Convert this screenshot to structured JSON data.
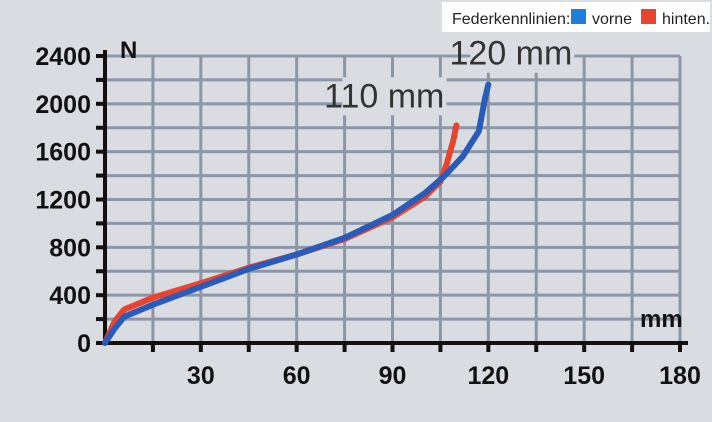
{
  "chart_data": {
    "type": "line",
    "title": "",
    "xlabel": "mm",
    "ylabel": "N",
    "xlim": [
      0,
      180
    ],
    "ylim": [
      0,
      2400
    ],
    "x_ticks": [
      30,
      60,
      90,
      120,
      150,
      180
    ],
    "y_ticks": [
      0,
      400,
      800,
      1200,
      1600,
      2000,
      2400
    ],
    "grid": true,
    "legend": {
      "position": "top-right",
      "title": "Federkennlinien:",
      "entries": [
        {
          "label": "vorne",
          "color": "#1d7fd8"
        },
        {
          "label": "hinten.",
          "color": "#e8442e"
        }
      ]
    },
    "annotations": [
      {
        "text": "110 mm",
        "series": "hinten."
      },
      {
        "text": "120 mm",
        "series": "vorne"
      }
    ],
    "series": [
      {
        "name": "vorne",
        "color": "#2a5bb8",
        "x": [
          0,
          3,
          6,
          15,
          30,
          45,
          60,
          75,
          90,
          100,
          106,
          112,
          117,
          119,
          120
        ],
        "y": [
          0,
          120,
          220,
          320,
          470,
          620,
          740,
          880,
          1070,
          1250,
          1390,
          1560,
          1770,
          2050,
          2160
        ]
      },
      {
        "name": "hinten.",
        "color": "#e8442e",
        "x": [
          0,
          3,
          6,
          15,
          30,
          45,
          60,
          75,
          90,
          100,
          105,
          107,
          109,
          110
        ],
        "y": [
          0,
          180,
          280,
          380,
          500,
          630,
          740,
          870,
          1050,
          1220,
          1350,
          1500,
          1690,
          1820
        ]
      }
    ]
  }
}
